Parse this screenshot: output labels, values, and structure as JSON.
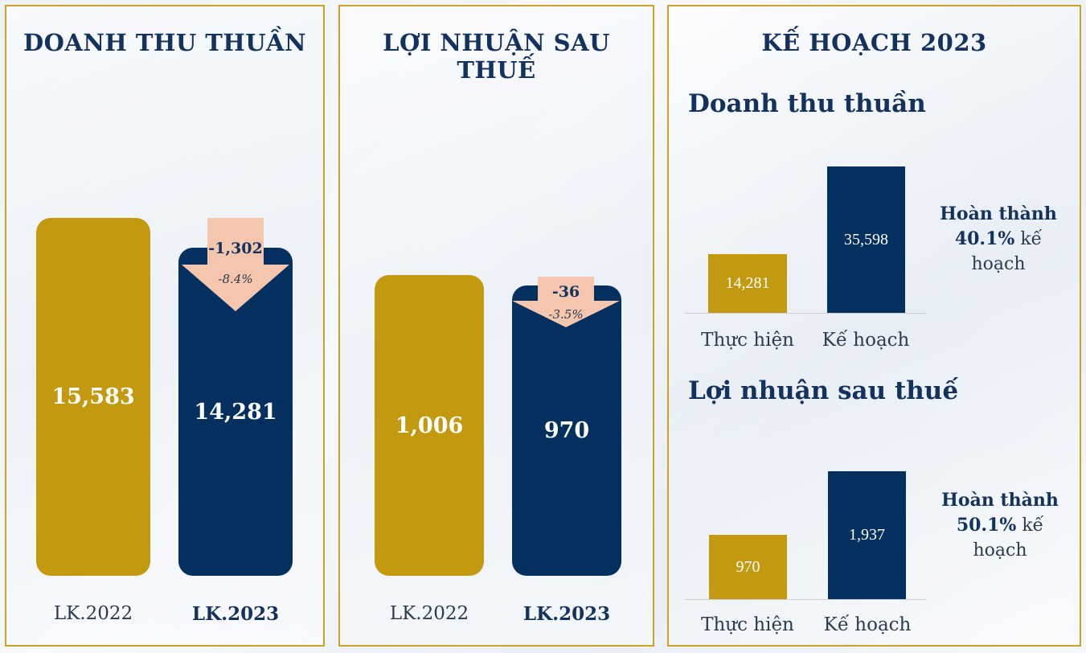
{
  "panels": {
    "revenue": {
      "title": "DOANH THU THUẦN",
      "bars": [
        {
          "category": "LK.2022",
          "value": 15583,
          "label": "15,583"
        },
        {
          "category": "LK.2023",
          "value": 14281,
          "label": "14,281"
        }
      ],
      "change": {
        "value": "-1,302",
        "percent": "-8.4%"
      }
    },
    "profit": {
      "title": "LỢI NHUẬN SAU THUẾ",
      "bars": [
        {
          "category": "LK.2022",
          "value": 1006,
          "label": "1,006"
        },
        {
          "category": "LK.2023",
          "value": 970,
          "label": "970"
        }
      ],
      "change": {
        "value": "-36",
        "percent": "-3.5%"
      }
    },
    "plan": {
      "title": "KẾ HOẠCH 2023",
      "revenue": {
        "subtitle": "Doanh thu thuần",
        "bars": [
          {
            "category": "Thực hiện",
            "value": 14281,
            "label": "14,281"
          },
          {
            "category": "Kế hoạch",
            "value": 35598,
            "label": "35,598"
          }
        ],
        "completion": {
          "line1": "Hoàn thành",
          "percent": "40.1%",
          "suffix": "kế",
          "line3": "hoạch"
        }
      },
      "profit": {
        "subtitle": "Lợi nhuận sau thuế",
        "bars": [
          {
            "category": "Thực hiện",
            "value": 970,
            "label": "970"
          },
          {
            "category": "Kế hoạch",
            "value": 1937,
            "label": "1,937"
          }
        ],
        "completion": {
          "line1": "Hoàn thành",
          "percent": "50.1%",
          "suffix": "kế",
          "line3": "hoạch"
        }
      }
    }
  },
  "colors": {
    "gold": "#c2990f",
    "navy": "#03305f",
    "arrow": "#f4c6ad",
    "border": "#c9a227",
    "title": "#14325e"
  },
  "chart_data": [
    {
      "type": "bar",
      "title": "DOANH THU THUẦN",
      "categories": [
        "LK.2022",
        "LK.2023"
      ],
      "values": [
        15583,
        14281
      ],
      "annotations": [
        "-1,302",
        "-8.4%"
      ]
    },
    {
      "type": "bar",
      "title": "LỢI NHUẬN SAU THUẾ",
      "categories": [
        "LK.2022",
        "LK.2023"
      ],
      "values": [
        1006,
        970
      ],
      "annotations": [
        "-36",
        "-3.5%"
      ]
    },
    {
      "type": "bar",
      "title": "Doanh thu thuần",
      "categories": [
        "Thực hiện",
        "Kế hoạch"
      ],
      "values": [
        14281,
        35598
      ],
      "annotations": [
        "Hoàn thành 40.1% kế hoạch"
      ]
    },
    {
      "type": "bar",
      "title": "Lợi nhuận sau thuế",
      "categories": [
        "Thực hiện",
        "Kế hoạch"
      ],
      "values": [
        970,
        1937
      ],
      "annotations": [
        "Hoàn thành 50.1% kế hoạch"
      ]
    }
  ]
}
